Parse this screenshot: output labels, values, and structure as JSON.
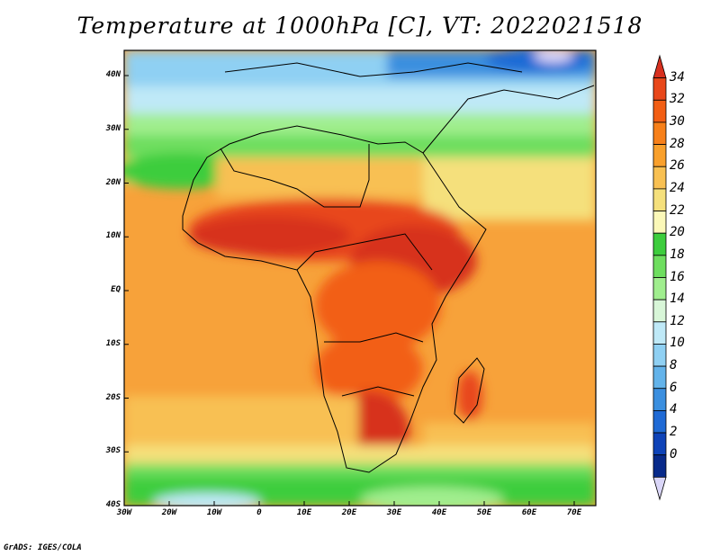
{
  "title": "Temperature at 1000hPa [C], VT: 2022021518",
  "credit": "GrADS: IGES/COLA",
  "map": {
    "lon_range": [
      -30,
      75
    ],
    "lat_range": [
      -40,
      45
    ],
    "lat_ticks": [
      "40N",
      "30N",
      "20N",
      "10N",
      "EQ",
      "10S",
      "20S",
      "30S",
      "40S"
    ],
    "lon_ticks": [
      "30W",
      "20W",
      "10W",
      "0",
      "10E",
      "20E",
      "30E",
      "40E",
      "50E",
      "60E",
      "70E"
    ]
  },
  "colorbar": {
    "labels": [
      "34",
      "32",
      "30",
      "28",
      "26",
      "24",
      "22",
      "20",
      "18",
      "16",
      "14",
      "12",
      "10",
      "8",
      "6",
      "4",
      "2",
      "0"
    ],
    "colors_top_to_bottom": [
      "#d7301f",
      "#e8471a",
      "#f25e14",
      "#f7801a",
      "#f9a02c",
      "#f8c052",
      "#f5e07c",
      "#fbf8b8",
      "#3dcd3d",
      "#6ede5f",
      "#a0ee8e",
      "#d8f6d8",
      "#bfe9f7",
      "#8fd0f3",
      "#63b3ea",
      "#3b8fdf",
      "#1f6ad5",
      "#0e43b8",
      "#082a8a",
      "#dad6f8"
    ]
  }
}
